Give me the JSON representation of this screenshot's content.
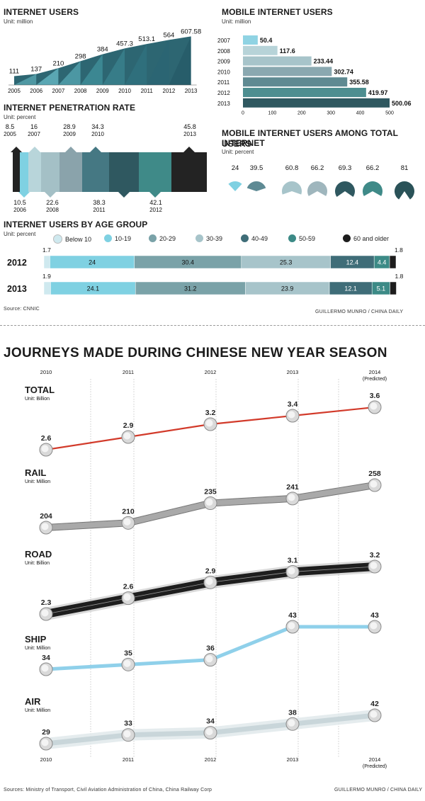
{
  "colors": {
    "dark_teal": "#2e5a62",
    "mid_teal": "#3f8a8f",
    "light_teal": "#9fc6cc",
    "cyan": "#7fd1e2",
    "slate": "#5e8a94",
    "black": "#1f1f1f",
    "red_line": "#d23a2a"
  },
  "internet_users": {
    "title": "INTERNET USERS",
    "unit": "Unit: million"
  },
  "mobile_users": {
    "title": "MOBILE INTERNET USERS",
    "unit": "Unit: million"
  },
  "penetration": {
    "title": "INTERNET PENETRATION RATE",
    "unit": "Unit: percent"
  },
  "mobile_share": {
    "title_line1": "MOBILE INTERNET USERS AMONG TOTAL INTERNET",
    "title_line2": "USERS",
    "unit": "Unit: percent"
  },
  "age_group": {
    "title": "INTERNET USERS BY AGE GROUP",
    "unit": "Unit: percent",
    "legend": [
      "Below 10",
      "10-19",
      "20-29",
      "30-39",
      "40-49",
      "50-59",
      "60 and older"
    ]
  },
  "source_top": "Source: CNNIC",
  "credit_top": "GUILLERMO MUNRO / CHINA DAILY",
  "journeys": {
    "title": "JOURNEYS MADE DURING CHINESE NEW YEAR SEASON",
    "years_top": [
      "2010",
      "2011",
      "2012",
      "2013",
      "2014"
    ],
    "predicted": "(Predicted)",
    "years_bottom": [
      "2010",
      "2011",
      "2012",
      "2013",
      "2014"
    ],
    "sources": "Sources: Ministry of Transport, Civil Aviation Administration of China, China Railway Corp",
    "credit": "GUILLERMO MUNRO / CHINA DAILY",
    "series_titles": {
      "total": "TOTAL",
      "rail": "RAIL",
      "road": "ROAD",
      "ship": "SHIP",
      "air": "AIR"
    },
    "series_units": {
      "total": "Unit: Billion",
      "rail": "Unit: Million",
      "road": "Unit: Billion",
      "ship": "Unit: Million",
      "air": "Unit: Million"
    }
  },
  "chart_data": [
    {
      "type": "area",
      "title": "INTERNET USERS",
      "unit": "Unit: million",
      "categories": [
        "2005",
        "2006",
        "2007",
        "2008",
        "2009",
        "2010",
        "2011",
        "2012",
        "2013"
      ],
      "values": [
        111,
        137,
        210,
        298,
        384,
        457.3,
        513.1,
        564,
        607.58
      ],
      "labels": [
        "111",
        "137",
        "210",
        "298",
        "384",
        "457.3",
        "513.1",
        "564",
        "607.58"
      ]
    },
    {
      "type": "bar",
      "title": "MOBILE INTERNET USERS",
      "unit": "Unit: million",
      "orientation": "horizontal",
      "categories": [
        "2007",
        "2008",
        "2009",
        "2010",
        "2011",
        "2012",
        "2013"
      ],
      "values": [
        50.4,
        117.6,
        233.44,
        302.74,
        355.58,
        419.97,
        500.06
      ],
      "labels": [
        "50.4",
        "117.6",
        "233.44",
        "302.74",
        "355.58",
        "419.97",
        "500.06"
      ],
      "xticks": [
        "0",
        "100",
        "200",
        "300",
        "400",
        "500"
      ],
      "xlim": [
        0,
        500
      ]
    },
    {
      "type": "bar",
      "title": "INTERNET PENETRATION RATE",
      "unit": "Unit: percent",
      "categories": [
        "2005",
        "2006",
        "2007",
        "2008",
        "2009",
        "2010",
        "2011",
        "2012",
        "2013"
      ],
      "values": [
        8.5,
        10.5,
        16,
        22.6,
        28.9,
        34.3,
        38.3,
        42.1,
        45.8
      ],
      "labels": [
        "8.5",
        "10.5",
        "16",
        "22.6",
        "28.9",
        "34.3",
        "38.3",
        "42.1",
        "45.8"
      ]
    },
    {
      "type": "pie",
      "title": "MOBILE INTERNET USERS AMONG TOTAL INTERNET USERS",
      "unit": "Unit: percent",
      "values": [
        24,
        39.5,
        60.8,
        66.2,
        69.3,
        66.2,
        81
      ],
      "labels": [
        "24",
        "39.5",
        "60.8",
        "66.2",
        "69.3",
        "66.2",
        "81"
      ]
    },
    {
      "type": "bar",
      "stacked": true,
      "title": "INTERNET USERS BY AGE GROUP",
      "unit": "Unit: percent",
      "categories": [
        "2012",
        "2013"
      ],
      "series": [
        {
          "name": "Below 10",
          "values": [
            1.7,
            1.9
          ],
          "labels": [
            "1.7",
            "1.9"
          ]
        },
        {
          "name": "10-19",
          "values": [
            24,
            24.1
          ],
          "labels": [
            "24",
            "24.1"
          ]
        },
        {
          "name": "20-29",
          "values": [
            30.4,
            31.2
          ],
          "labels": [
            "30.4",
            "31.2"
          ]
        },
        {
          "name": "30-39",
          "values": [
            25.3,
            23.9
          ],
          "labels": [
            "25.3",
            "23.9"
          ]
        },
        {
          "name": "40-49",
          "values": [
            12.4,
            12.1
          ],
          "labels": [
            "12.4",
            "12.1"
          ]
        },
        {
          "name": "50-59",
          "values": [
            4.4,
            5.1
          ],
          "labels": [
            "4.4",
            "5.1"
          ]
        },
        {
          "name": "60 and older",
          "values": [
            1.8,
            1.8
          ],
          "labels": [
            "1.8",
            "1.8"
          ]
        }
      ]
    },
    {
      "type": "line",
      "title": "JOURNEYS MADE DURING CHINESE NEW YEAR SEASON",
      "x": [
        "2010",
        "2011",
        "2012",
        "2013",
        "2014 (Predicted)"
      ],
      "series": [
        {
          "name": "TOTAL",
          "unit": "Unit: Billion",
          "values": [
            2.6,
            2.9,
            3.2,
            3.4,
            3.6
          ],
          "labels": [
            "2.6",
            "2.9",
            "3.2",
            "3.4",
            "3.6"
          ],
          "ylim": [
            2.6,
            3.6
          ]
        },
        {
          "name": "RAIL",
          "unit": "Unit: Million",
          "values": [
            204,
            210,
            235,
            241,
            258
          ],
          "labels": [
            "204",
            "210",
            "235",
            "241",
            "258"
          ],
          "ylim": [
            204,
            258
          ]
        },
        {
          "name": "ROAD",
          "unit": "Unit: Billion",
          "values": [
            2.3,
            2.6,
            2.9,
            3.1,
            3.2
          ],
          "labels": [
            "2.3",
            "2.6",
            "2.9",
            "3.1",
            "3.2"
          ],
          "ylim": [
            2.3,
            3.2
          ]
        },
        {
          "name": "SHIP",
          "unit": "Unit: Million",
          "values": [
            34,
            35,
            36,
            43,
            43
          ],
          "labels": [
            "34",
            "35",
            "36",
            "43",
            "43"
          ],
          "ylim": [
            34,
            43
          ]
        },
        {
          "name": "AIR",
          "unit": "Unit: Million",
          "values": [
            29,
            33,
            34,
            38,
            42
          ],
          "labels": [
            "29",
            "33",
            "34",
            "38",
            "42"
          ],
          "ylim": [
            29,
            42
          ]
        }
      ]
    }
  ]
}
